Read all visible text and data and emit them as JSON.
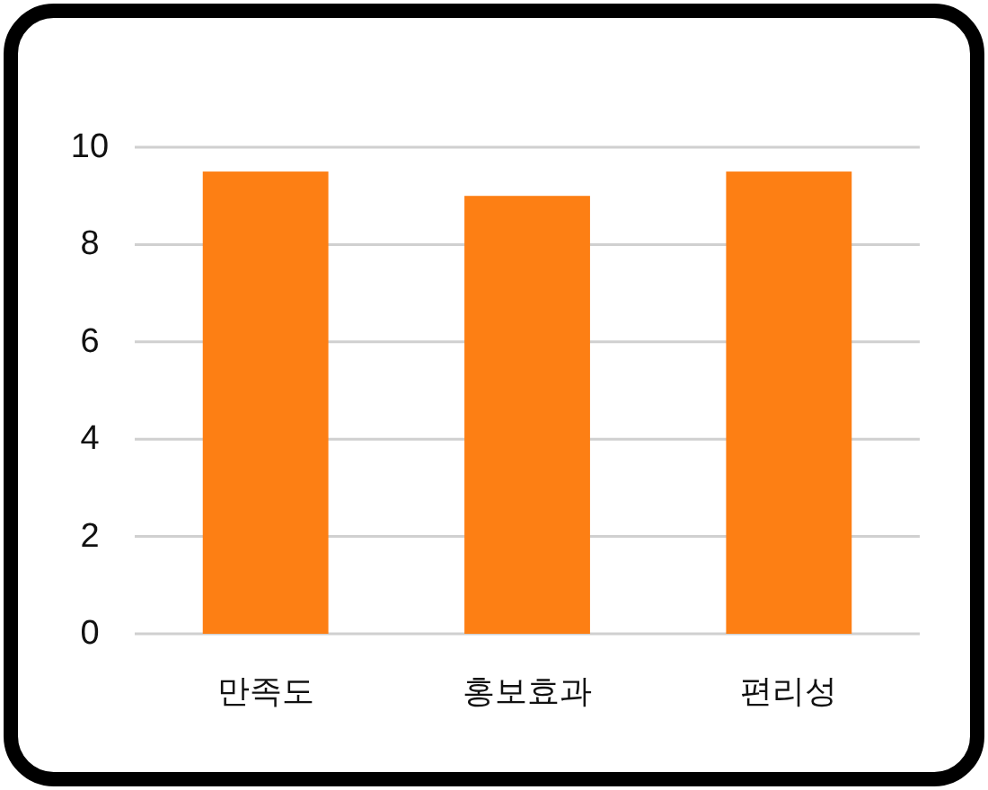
{
  "chart_data": {
    "type": "bar",
    "categories": [
      "만족도",
      "홍보효과",
      "편리성"
    ],
    "values": [
      9.5,
      9.0,
      9.5
    ],
    "color": "#fd7f14",
    "ylim": [
      0,
      10
    ],
    "yticks": [
      0,
      2,
      4,
      6,
      8,
      10
    ],
    "grid": "y"
  }
}
